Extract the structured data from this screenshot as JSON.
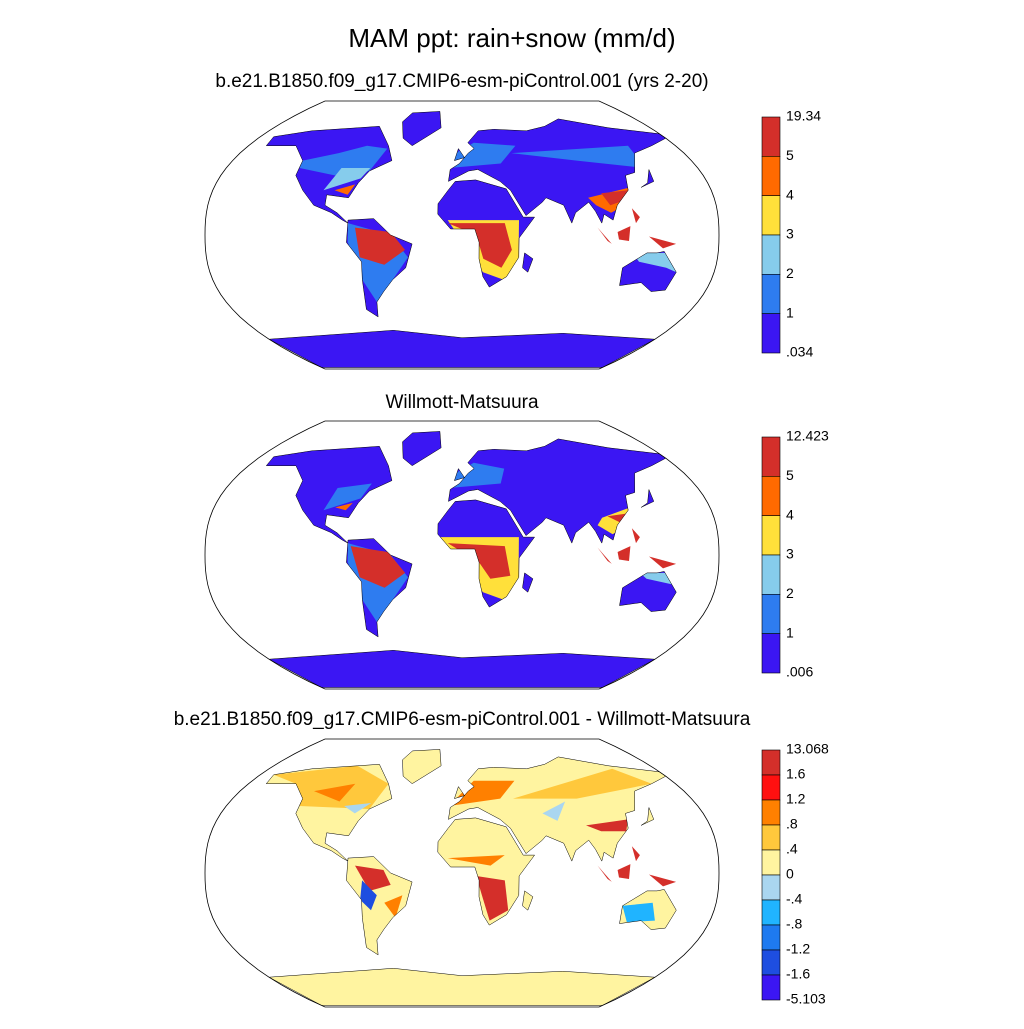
{
  "title": "MAM ppt: rain+snow (mm/d)",
  "panels": [
    {
      "title": "b.e21.B1850.f09_g17.CMIP6-esm-piControl.001 (yrs 2-20)",
      "colorbar": {
        "labels": [
          "19.34",
          "5",
          "4",
          "3",
          "2",
          "1",
          ".034"
        ],
        "colors": [
          "#d42f2a",
          "#ff6a00",
          "#ffe03a",
          "#86ccec",
          "#2e7cf0",
          "#3b16f3"
        ]
      }
    },
    {
      "title": "Willmott-Matsuura",
      "colorbar": {
        "labels": [
          "12.423",
          "5",
          "4",
          "3",
          "2",
          "1",
          ".006"
        ],
        "colors": [
          "#d42f2a",
          "#ff6a00",
          "#ffe03a",
          "#86ccec",
          "#2e7cf0",
          "#3b16f3"
        ]
      }
    },
    {
      "title": "b.e21.B1850.f09_g17.CMIP6-esm-piControl.001 - Willmott-Matsuura",
      "colorbar": {
        "labels": [
          "13.068",
          "1.6",
          "1.2",
          ".8",
          ".4",
          "0",
          "-.4",
          "-.8",
          "-1.2",
          "-1.6",
          "-5.103"
        ],
        "colors": [
          "#d42f2a",
          "#ff1010",
          "#ff8000",
          "#ffc83c",
          "#fff4a0",
          "#aad6f0",
          "#20b4ff",
          "#1e7af0",
          "#1e4ee0",
          "#3b16f3"
        ]
      }
    }
  ]
}
